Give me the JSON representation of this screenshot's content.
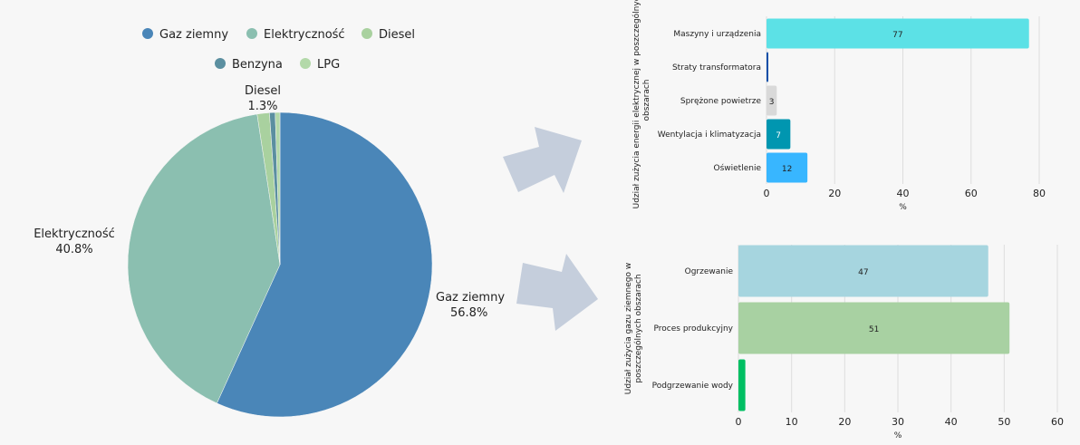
{
  "chart_data": [
    {
      "type": "pie",
      "legend_position": "top",
      "slices": [
        {
          "name": "Gaz ziemny",
          "value": 56.8,
          "label": "56.8%",
          "color": "#4a86b8"
        },
        {
          "name": "Elektryczność",
          "value": 40.8,
          "label": "40.8%",
          "color": "#8bbfb0"
        },
        {
          "name": "Diesel",
          "value": 1.3,
          "label": "1.3%",
          "color": "#a9d19f"
        },
        {
          "name": "Benzyna",
          "value": 0.6,
          "label": "",
          "color": "#5b8fa0"
        },
        {
          "name": "LPG",
          "value": 0.5,
          "label": "",
          "color": "#b3d9a9"
        }
      ]
    },
    {
      "type": "bar",
      "orientation": "horizontal",
      "ylabel": "Udział zużycia energii elektrycznej w poszczególnych obszarach",
      "xlabel": "%",
      "xlim": [
        0,
        80
      ],
      "xticks": [
        0,
        20,
        40,
        60,
        80
      ],
      "grid": true,
      "categories": [
        "Maszyny i urządzenia",
        "Straty transformatora",
        "Sprężone powietrze",
        "Wentylacja i klimatyzacja",
        "Oświetlenie"
      ],
      "values": [
        77,
        0.5,
        3,
        7,
        12
      ],
      "data_labels": [
        "77",
        "",
        "3",
        "7",
        "12"
      ],
      "colors": [
        "#5ce1e6",
        "#0d4fa8",
        "#d9d9d9",
        "#0096b0",
        "#38b6ff"
      ],
      "label_colors": [
        "#222",
        "#222",
        "#222",
        "#ffffff",
        "#222"
      ]
    },
    {
      "type": "bar",
      "orientation": "horizontal",
      "ylabel": "Udział zużycia gazu ziemnego w poszczególnych obszarach",
      "xlabel": "%",
      "xlim": [
        0,
        60
      ],
      "xticks": [
        0,
        10,
        20,
        30,
        40,
        50,
        60
      ],
      "grid": true,
      "categories": [
        "Ogrzewanie",
        "Proces produkcyjny",
        "Podgrzewanie wody"
      ],
      "values": [
        47,
        51,
        1.3
      ],
      "data_labels": [
        "47",
        "51",
        ""
      ],
      "colors": [
        "#a6d5df",
        "#a8d1a2",
        "#00bf63"
      ],
      "label_colors": [
        "#222",
        "#222",
        "#222"
      ]
    }
  ],
  "arrow_color": "#c5cedc"
}
